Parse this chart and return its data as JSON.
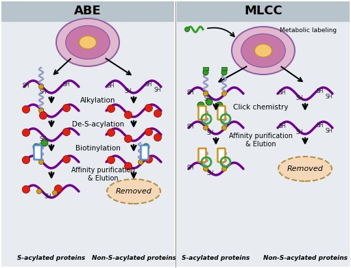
{
  "title_abe": "ABE",
  "title_mlcc": "MLCC",
  "label_alkylation": "Alkylation",
  "label_desacylation": "De-S-acylation",
  "label_biotinylation": "Biotinylation",
  "label_affinity_abe": "Affinity purification\n& Elution",
  "label_affinity_mlcc": "Affinity purification\n& Elution",
  "label_click": "Click chemistry",
  "label_metabolic": "Metabolic labeling",
  "label_removed": "Removed",
  "label_sacylated": "S-acylated proteins",
  "label_nonsacylated": "Non-S-acylated proteins",
  "bg_header": "#b8c4cc",
  "bg_main": "#e8ecf0",
  "bg_white": "#ffffff",
  "cell_outer_fc": "#e0b8d0",
  "cell_outer_ec": "#9060a0",
  "cell_mid_fc": "#c878a8",
  "cell_inner_fc": "#f5c870",
  "cell_inner_ec": "#c09030",
  "red_dot": "#e02010",
  "red_dot_ec": "#901008",
  "green_dot": "#30a020",
  "green_dot_ec": "#104010",
  "yellow_s": "#d0a010",
  "yellow_s_ec": "#806010",
  "blue_rect_fc": "#ffffff",
  "blue_rect_ec": "#5090d0",
  "orange_rect_fc": "#ffffff",
  "orange_rect_ec": "#d09020",
  "green_ring_ec": "#30a030",
  "prot_color": "#700090",
  "acyl_color": "#9898c8",
  "removed_fc": "#f5d8b8",
  "removed_ec": "#b09040",
  "fig_width": 5.12,
  "fig_height": 3.92,
  "dpi": 100
}
